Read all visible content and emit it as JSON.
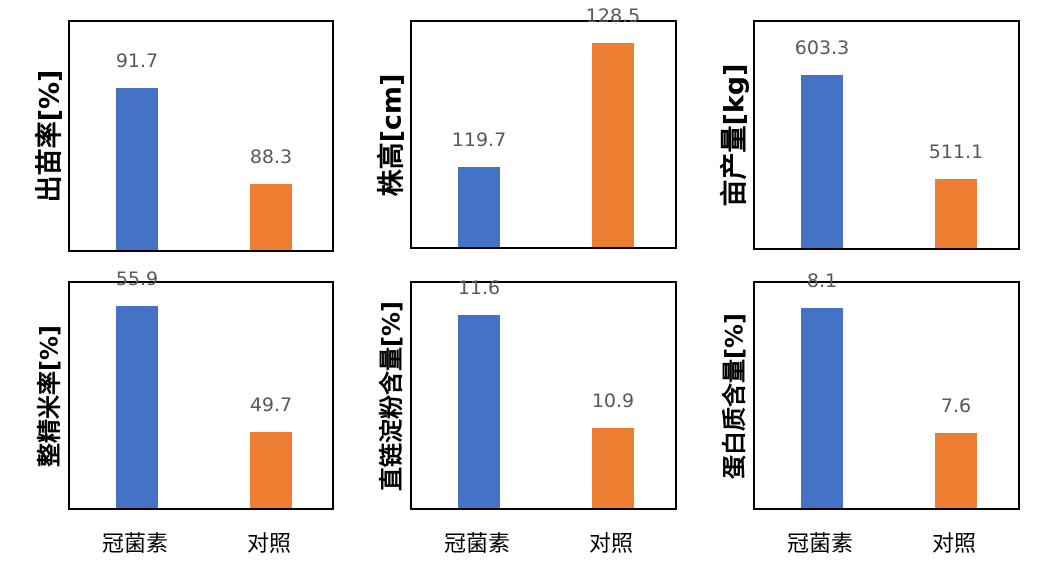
{
  "chart_data": [
    {
      "type": "bar",
      "ylabel": "出苗率[%]",
      "categories": [
        "冠菌素",
        "对照"
      ],
      "values": [
        91.7,
        88.3
      ],
      "ylim": [
        86,
        94
      ]
    },
    {
      "type": "bar",
      "ylabel": "株高[cm]",
      "categories": [
        "冠菌素",
        "对照"
      ],
      "values": [
        119.7,
        128.5
      ],
      "ylim": [
        114,
        130
      ]
    },
    {
      "type": "bar",
      "ylabel": "亩产量[kg]",
      "categories": [
        "冠菌素",
        "对照"
      ],
      "values": [
        603.3,
        511.1
      ],
      "ylim": [
        450,
        650
      ]
    },
    {
      "type": "bar",
      "ylabel": "整精米率[%]",
      "categories": [
        "冠菌素",
        "对照"
      ],
      "values": [
        55.9,
        49.7
      ],
      "ylim": [
        46,
        57
      ]
    },
    {
      "type": "bar",
      "ylabel": "直链淀粉含量[%]",
      "categories": [
        "冠菌素",
        "对照"
      ],
      "values": [
        11.6,
        10.9
      ],
      "ylim": [
        10.4,
        11.8
      ]
    },
    {
      "type": "bar",
      "ylabel": "蛋白质含量[%]",
      "categories": [
        "冠菌素",
        "对照"
      ],
      "values": [
        8.1,
        7.6
      ],
      "ylim": [
        7.3,
        8.2
      ]
    }
  ],
  "colors": [
    "#4472C4",
    "#ED7D31"
  ],
  "grid": false,
  "legend": "none"
}
